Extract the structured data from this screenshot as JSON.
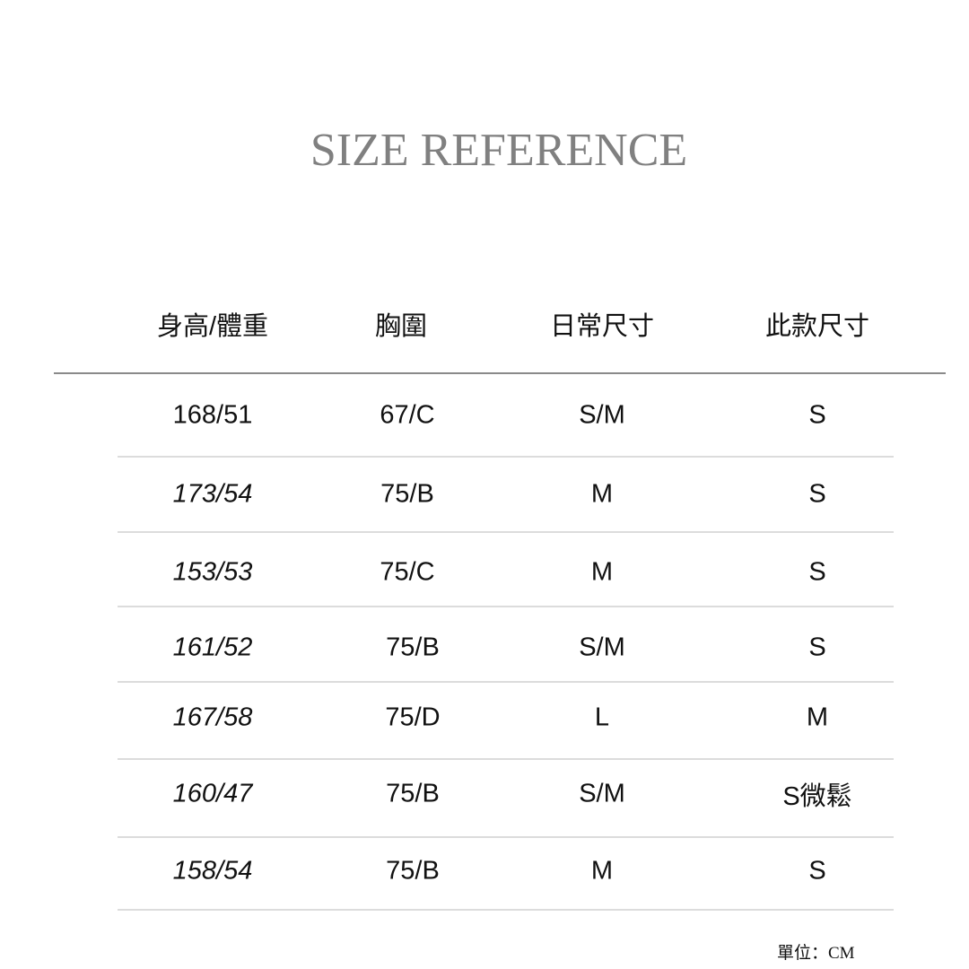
{
  "title": "SIZE REFERENCE",
  "headers": [
    "身高/體重",
    "胸圍",
    "日常尺寸",
    "此款尺寸"
  ],
  "rows": [
    [
      "168/51",
      "67/C",
      "S/M",
      "S"
    ],
    [
      "173/54",
      "75/B",
      "M",
      "S"
    ],
    [
      "153/53",
      "75/C",
      "M",
      "S"
    ],
    [
      "161/52",
      "75/B",
      "S/M",
      "S"
    ],
    [
      "167/58",
      "75/D",
      "L",
      "M"
    ],
    [
      "160/47",
      "75/B",
      "S/M",
      "S微鬆"
    ],
    [
      "158/54",
      "75/B",
      "M",
      "S"
    ]
  ],
  "unit": "單位：CM",
  "colors": {
    "title": "#808080",
    "text": "#111111",
    "header_rule": "#8a8a8a",
    "row_rule": "#dcdcdc"
  }
}
